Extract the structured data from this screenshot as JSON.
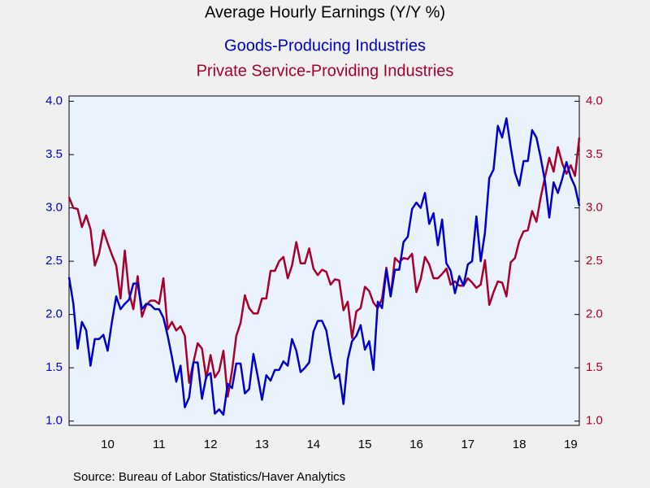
{
  "chart_data": {
    "type": "line",
    "title": "Average Hourly Earnings (Y/Y %)",
    "source": "Source:  Bureau of Labor Statistics/Haver Analytics",
    "categories": [
      null,
      null,
      null,
      null,
      null,
      null,
      null,
      null,
      null,
      "10",
      null,
      null,
      null,
      null,
      null,
      null,
      null,
      null,
      null,
      null,
      null,
      "11",
      null,
      null,
      null,
      null,
      null,
      null,
      null,
      null,
      null,
      null,
      null,
      "12",
      null,
      null,
      null,
      null,
      null,
      null,
      null,
      null,
      null,
      null,
      null,
      "13",
      null,
      null,
      null,
      null,
      null,
      null,
      null,
      null,
      null,
      null,
      null,
      "14",
      null,
      null,
      null,
      null,
      null,
      null,
      null,
      null,
      null,
      null,
      null,
      "15",
      null,
      null,
      null,
      null,
      null,
      null,
      null,
      null,
      null,
      null,
      null,
      "16",
      null,
      null,
      null,
      null,
      null,
      null,
      null,
      null,
      null,
      null,
      null,
      "17",
      null,
      null,
      null,
      null,
      null,
      null,
      null,
      null,
      null,
      null,
      null,
      "18",
      null,
      null,
      null,
      null,
      null,
      null,
      null,
      null,
      null,
      null,
      null,
      "19",
      null,
      null
    ],
    "series": [
      {
        "name": "Goods-Producing Industries",
        "color": "#0000c8",
        "axis": "y",
        "values": [
          2.35,
          2.1,
          1.68,
          1.93,
          1.85,
          1.52,
          1.77,
          1.77,
          1.81,
          1.66,
          1.93,
          2.17,
          2.05,
          2.1,
          2.14,
          2.29,
          2.29,
          2.05,
          2.1,
          2.09,
          2.05,
          2.05,
          1.97,
          1.8,
          1.6,
          1.37,
          1.52,
          1.13,
          1.22,
          1.55,
          1.55,
          1.21,
          1.42,
          1.45,
          1.07,
          1.11,
          1.06,
          1.35,
          1.31,
          1.54,
          1.54,
          1.26,
          1.3,
          1.63,
          1.42,
          1.2,
          1.43,
          1.38,
          1.48,
          1.48,
          1.56,
          1.52,
          1.77,
          1.66,
          1.46,
          1.5,
          1.55,
          1.84,
          1.94,
          1.94,
          1.85,
          1.61,
          1.4,
          1.44,
          1.16,
          1.58,
          1.75,
          1.8,
          1.9,
          1.67,
          1.75,
          1.48,
          2.12,
          2.06,
          2.42,
          2.17,
          2.42,
          2.42,
          2.68,
          2.73,
          2.99,
          3.05,
          3.0,
          3.14,
          2.85,
          2.95,
          2.65,
          2.89,
          2.48,
          2.41,
          2.2,
          2.36,
          2.27,
          2.47,
          2.5,
          2.92,
          2.5,
          2.77,
          3.28,
          3.36,
          3.77,
          3.66,
          3.84,
          3.57,
          3.33,
          3.21,
          3.44,
          3.44,
          3.73,
          3.66,
          3.47,
          3.25,
          2.91,
          3.24,
          3.14,
          3.27,
          3.43,
          3.29,
          3.2,
          3.02
        ]
      },
      {
        "name": "Private Service-Providing Industries",
        "color": "#a8002c",
        "axis": "y2",
        "values": [
          3.1,
          3.0,
          2.99,
          2.82,
          2.93,
          2.8,
          2.46,
          2.57,
          2.79,
          2.67,
          2.56,
          2.46,
          2.15,
          2.6,
          2.2,
          2.05,
          2.36,
          1.98,
          2.09,
          2.13,
          2.13,
          2.1,
          2.34,
          1.86,
          1.93,
          1.85,
          1.89,
          1.8,
          1.36,
          1.55,
          1.73,
          1.68,
          1.4,
          1.62,
          1.41,
          1.47,
          1.66,
          1.23,
          1.47,
          1.8,
          1.92,
          2.18,
          2.06,
          2.01,
          2.01,
          2.15,
          2.15,
          2.41,
          2.41,
          2.5,
          2.54,
          2.34,
          2.46,
          2.68,
          2.48,
          2.48,
          2.62,
          2.43,
          2.37,
          2.42,
          2.4,
          2.28,
          2.33,
          2.32,
          2.04,
          2.12,
          1.78,
          2.03,
          2.06,
          2.26,
          2.22,
          2.11,
          2.06,
          2.15,
          2.44,
          2.17,
          2.53,
          2.49,
          2.53,
          2.52,
          2.57,
          2.21,
          2.33,
          2.54,
          2.47,
          2.34,
          2.34,
          2.38,
          2.43,
          2.28,
          2.31,
          2.27,
          2.27,
          2.34,
          2.3,
          2.25,
          2.28,
          2.51,
          2.09,
          2.21,
          2.31,
          2.3,
          2.17,
          2.49,
          2.53,
          2.69,
          2.78,
          2.79,
          2.97,
          2.87,
          3.1,
          3.29,
          3.47,
          3.34,
          3.57,
          3.42,
          3.32,
          3.4,
          3.3,
          3.66
        ]
      }
    ],
    "ylim": [
      0.96,
      4.05
    ],
    "yticks": [
      {
        "value": 1,
        "label": "1.0"
      },
      {
        "value": 1.5,
        "label": "1.5"
      },
      {
        "value": 2,
        "label": "2.0"
      },
      {
        "value": 2.5,
        "label": "2.5"
      },
      {
        "value": 3,
        "label": "3.0"
      },
      {
        "value": 3.5,
        "label": "3.5"
      },
      {
        "value": 4,
        "label": "4.0"
      }
    ],
    "y2lim": [
      0.96,
      4.05
    ],
    "y2ticks": [
      {
        "value": 1,
        "label": "1.0"
      },
      {
        "value": 1.5,
        "label": "1.5"
      },
      {
        "value": 2,
        "label": "2.0"
      },
      {
        "value": 2.5,
        "label": "2.5"
      },
      {
        "value": 3,
        "label": "3.0"
      },
      {
        "value": 3.5,
        "label": "3.5"
      },
      {
        "value": 4,
        "label": "4.0"
      }
    ],
    "grid": false
  }
}
